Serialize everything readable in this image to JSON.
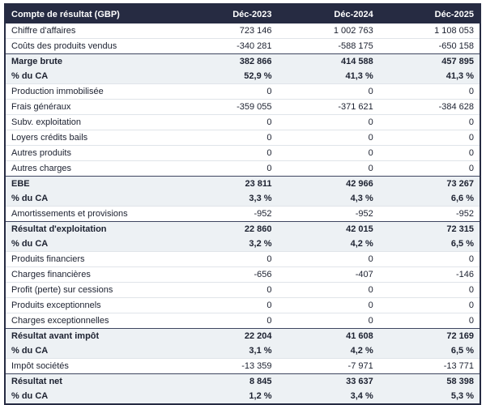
{
  "table": {
    "header": {
      "label": "Compte de résultat (GBP)",
      "columns": [
        "Déc-2023",
        "Déc-2024",
        "Déc-2025"
      ]
    },
    "rows": [
      {
        "label": "Chiffre d'affaires",
        "values": [
          "723 146",
          "1 002 763",
          "1 108 053"
        ],
        "emphasis": false
      },
      {
        "label": "Coûts des produits vendus",
        "values": [
          "-340 281",
          "-588 175",
          "-650 158"
        ],
        "emphasis": false
      },
      {
        "label": "Marge brute",
        "values": [
          "382 866",
          "414 588",
          "457 895"
        ],
        "emphasis": true
      },
      {
        "label": "% du CA",
        "values": [
          "52,9 %",
          "41,3 %",
          "41,3 %"
        ],
        "emphasis": true
      },
      {
        "label": "Production immobilisée",
        "values": [
          "0",
          "0",
          "0"
        ],
        "emphasis": false
      },
      {
        "label": "Frais généraux",
        "values": [
          "-359 055",
          "-371 621",
          "-384 628"
        ],
        "emphasis": false
      },
      {
        "label": "Subv. exploitation",
        "values": [
          "0",
          "0",
          "0"
        ],
        "emphasis": false
      },
      {
        "label": "Loyers crédits bails",
        "values": [
          "0",
          "0",
          "0"
        ],
        "emphasis": false
      },
      {
        "label": "Autres produits",
        "values": [
          "0",
          "0",
          "0"
        ],
        "emphasis": false
      },
      {
        "label": "Autres charges",
        "values": [
          "0",
          "0",
          "0"
        ],
        "emphasis": false
      },
      {
        "label": "EBE",
        "values": [
          "23 811",
          "42 966",
          "73 267"
        ],
        "emphasis": true
      },
      {
        "label": "% du CA",
        "values": [
          "3,3 %",
          "4,3 %",
          "6,6 %"
        ],
        "emphasis": true
      },
      {
        "label": "Amortissements et provisions",
        "values": [
          "-952",
          "-952",
          "-952"
        ],
        "emphasis": false
      },
      {
        "label": "Résultat d'exploitation",
        "values": [
          "22 860",
          "42 015",
          "72 315"
        ],
        "emphasis": true
      },
      {
        "label": "% du CA",
        "values": [
          "3,2 %",
          "4,2 %",
          "6,5 %"
        ],
        "emphasis": true
      },
      {
        "label": "Produits financiers",
        "values": [
          "0",
          "0",
          "0"
        ],
        "emphasis": false
      },
      {
        "label": "Charges financières",
        "values": [
          "-656",
          "-407",
          "-146"
        ],
        "emphasis": false
      },
      {
        "label": "Profit (perte) sur cessions",
        "values": [
          "0",
          "0",
          "0"
        ],
        "emphasis": false
      },
      {
        "label": "Produits exceptionnels",
        "values": [
          "0",
          "0",
          "0"
        ],
        "emphasis": false
      },
      {
        "label": "Charges exceptionnelles",
        "values": [
          "0",
          "0",
          "0"
        ],
        "emphasis": false
      },
      {
        "label": "Résultat avant impôt",
        "values": [
          "22 204",
          "41 608",
          "72 169"
        ],
        "emphasis": true
      },
      {
        "label": "% du CA",
        "values": [
          "3,1 %",
          "4,2 %",
          "6,5 %"
        ],
        "emphasis": true
      },
      {
        "label": "Impôt sociétés",
        "values": [
          "-13 359",
          "-7 971",
          "-13 771"
        ],
        "emphasis": false
      },
      {
        "label": "Résultat net",
        "values": [
          "8 845",
          "33 637",
          "58 398"
        ],
        "emphasis": true
      },
      {
        "label": "% du CA",
        "values": [
          "1,2 %",
          "3,4 %",
          "5,3 %"
        ],
        "emphasis": true
      }
    ],
    "colors": {
      "header_bg": "#262b42",
      "header_text": "#ffffff",
      "highlight_row_bg": "#edf1f4",
      "section_border": "#3e4660",
      "row_divider": "#e0e4e9",
      "text": "#1c2130"
    }
  }
}
